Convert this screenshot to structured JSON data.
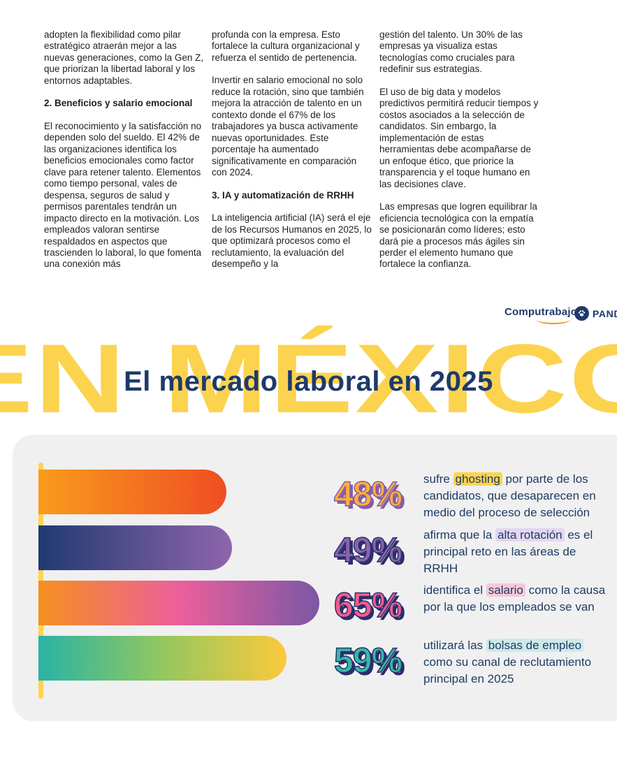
{
  "article": {
    "col1_p1": "adopten la flexibilidad como pilar estratégico atraerán mejor a las nuevas generaciones, como la Gen Z, que priorizan la libertad laboral y los entornos adaptables.",
    "col1_h": "2. Beneficios y salario emocional",
    "col1_p2": "El reconocimiento y la satisfacción no dependen solo del sueldo. El 42% de las organizaciones identifica los beneficios emocionales como factor clave para retener talento. Elementos como tiempo personal, vales de despensa, seguros de salud y permisos parentales tendrán un impacto directo en la motivación. Los empleados valoran sentirse respaldados en aspectos que trascienden lo laboral, lo que fomenta una conexión más",
    "col2_p1": "profunda con la empresa. Esto fortalece la cultura organizacional y refuerza el sentido de pertenencia.",
    "col2_p2": "Invertir en salario emocional no solo reduce la rotación, sino que también mejora la atracción de talento en un contexto donde el 67% de los trabajadores ya busca activamente nuevas oportunidades. Este porcentaje ha aumentado significativamente en comparación con 2024.",
    "col2_h": "3. IA y automatización de RRHH",
    "col2_p3": "La inteligencia artificial (IA) será el eje de los Recursos Humanos en 2025, lo que optimizará procesos como el reclutamiento, la evaluación del desempeño y la",
    "col3_p1": "gestión del talento. Un 30% de las empresas ya visualiza estas tecnologías como cruciales para redefinir sus estrategias.",
    "col3_p2": "El uso de big data y modelos predictivos permitirá reducir tiempos y costos asociados a la selección de candidatos. Sin embargo, la implementación de estas herramientas debe acompañarse de un enfoque ético, que priorice la transparencia y el toque humano en las decisiones clave.",
    "col3_p3": "Las empresas que logren equilibrar la eficiencia tecnológica con la empatía se posicionarán como líderes; esto dará pie a procesos más ágiles sin perder el elemento humano que fortalece la confianza."
  },
  "logos": {
    "computrabajo": "Computrabajo",
    "pandape": "PANDAPÉ"
  },
  "banner": {
    "background_text": "EN MÉXICO",
    "title": "El mercado laboral en 2025",
    "background_color": "#fcd34f",
    "title_color": "#1d3a6b"
  },
  "chart_data": {
    "type": "bar",
    "orientation": "horizontal",
    "title": "El mercado laboral en 2025",
    "categories": [
      "ghosting",
      "alta rotacion",
      "salario",
      "bolsas de empleo"
    ],
    "values": [
      48,
      49,
      65,
      59
    ],
    "stats": [
      {
        "value": "48%",
        "value_color": "#fbb03b",
        "value_shadow": "#8a5ba5",
        "bar_colors": [
          "#f89b1c",
          "#ef4e23"
        ],
        "highlight_bg": "#fcd44f",
        "parts": [
          {
            "t": "sufre "
          },
          {
            "t": "ghosting",
            "hl": true
          },
          {
            "t": " por parte de los candidatos, que desaparecen en medio del proceso de selección"
          }
        ]
      },
      {
        "value": "49%",
        "value_color": "#8a63aa",
        "value_shadow": "#2b2e6b",
        "bar_colors": [
          "#203a70",
          "#8f65ad"
        ],
        "highlight_bg": "#e4d6f0",
        "parts": [
          {
            "t": "afirma que la "
          },
          {
            "t": "alta rotación",
            "hl": true
          },
          {
            "t": " es el principal reto en las áreas de RRHH"
          }
        ]
      },
      {
        "value": "65%",
        "value_color": "#f25c8c",
        "value_shadow": "#2b2e6b",
        "bar_colors": [
          "#f5901e",
          "#ec5f9b",
          "#7b57a5"
        ],
        "highlight_bg": "#f8c8d8",
        "parts": [
          {
            "t": "identifica el "
          },
          {
            "t": "salario",
            "hl": true
          },
          {
            "t": " como la causa por la que los empleados se van"
          }
        ]
      },
      {
        "value": "59%",
        "value_color": "#36b9a8",
        "value_shadow": "#2b2e6b",
        "bar_colors": [
          "#29b3a5",
          "#93c75f",
          "#fcc93c"
        ],
        "highlight_bg": "#cceaea",
        "parts": [
          {
            "t": "utilizará las "
          },
          {
            "t": "bolsas de empleo",
            "hl": true
          },
          {
            "t": " como su canal de reclutamiento principal en 2025"
          }
        ]
      }
    ]
  }
}
